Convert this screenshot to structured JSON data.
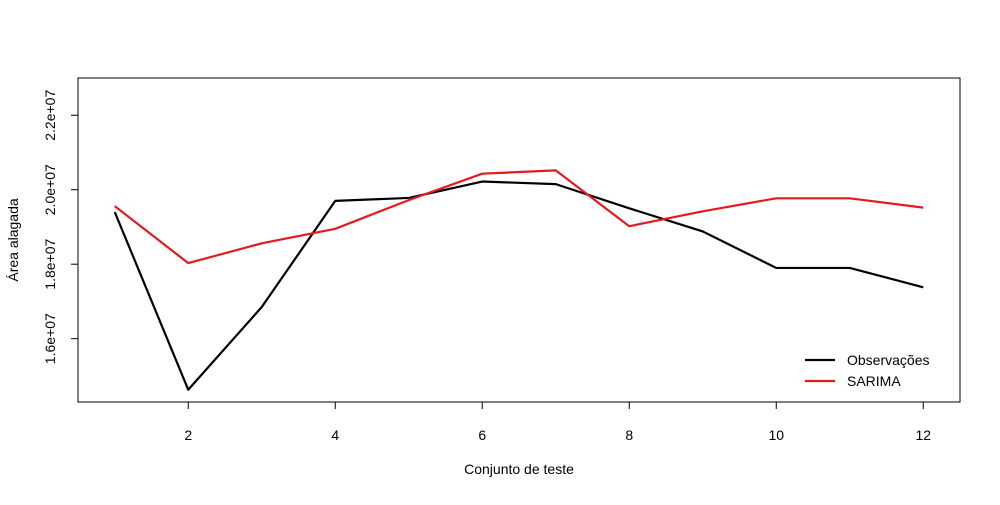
{
  "chart_data": {
    "type": "line",
    "title": "",
    "xlabel": "Conjunto de teste",
    "ylabel": "Área alagada",
    "x": [
      1,
      2,
      3,
      4,
      5,
      6,
      7,
      8,
      9,
      10,
      11,
      12
    ],
    "xlim": [
      0.5,
      12.5
    ],
    "ylim": [
      14300000,
      23000000
    ],
    "x_ticks": [
      2,
      4,
      6,
      8,
      10,
      12
    ],
    "x_tick_labels": [
      "2",
      "4",
      "6",
      "8",
      "10",
      "12"
    ],
    "y_ticks": [
      16000000,
      18000000,
      20000000,
      22000000
    ],
    "y_tick_labels": [
      "1.6e+07",
      "1.8e+07",
      "2.0e+07",
      "2.2e+07"
    ],
    "grid": false,
    "legend_position": "bottom-right",
    "series": [
      {
        "name": "Observações",
        "color": "#000000",
        "values": [
          19400000,
          14630000,
          16850000,
          19700000,
          19780000,
          20220000,
          20150000,
          19500000,
          18880000,
          17900000,
          17900000,
          17380000
        ]
      },
      {
        "name": "SARIMA",
        "color": "#e41a1c",
        "values": [
          19560000,
          18030000,
          18560000,
          18950000,
          19720000,
          20430000,
          20520000,
          19020000,
          19420000,
          19770000,
          19770000,
          19520000
        ]
      }
    ]
  }
}
